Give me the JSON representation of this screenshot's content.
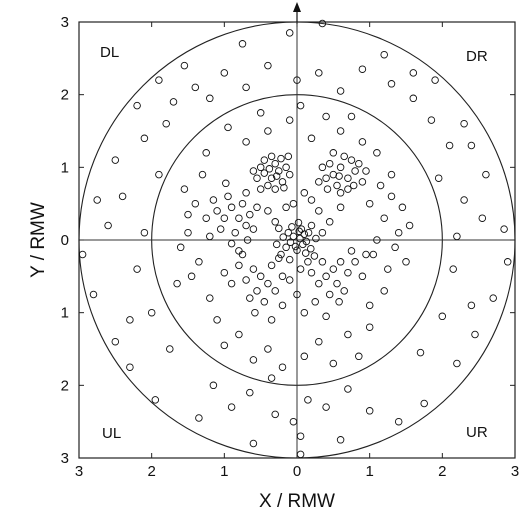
{
  "chart_data": {
    "type": "scatter",
    "title": "",
    "xlabel": "X / RMW",
    "ylabel": "Y / RMW",
    "xlim": [
      -3,
      3
    ],
    "ylim": [
      -3,
      3
    ],
    "x_ticks": [
      -3,
      -2,
      -1,
      0,
      1,
      2,
      3
    ],
    "y_ticks": [
      -3,
      -2,
      -1,
      0,
      1,
      2,
      3
    ],
    "x_tick_labels": [
      "3",
      "2",
      "1",
      "0",
      "1",
      "2",
      "3"
    ],
    "y_tick_labels": [
      "3",
      "2",
      "1",
      "0",
      "1",
      "2",
      "3"
    ],
    "reference_circle_radii": [
      2,
      3
    ],
    "crosshair": true,
    "north_arrow": true,
    "grid": false,
    "marker": "open-circle",
    "quadrant_labels": {
      "top_left": "DL",
      "top_right": "DR",
      "bottom_left": "UL",
      "bottom_right": "UR"
    },
    "point_distribution_note_values": {
      "dense_core_center": [
        0.0,
        0.0
      ],
      "dense_clusters": [
        [
          -0.3,
          0.9
        ],
        [
          0.6,
          0.9
        ],
        [
          -0.8,
          0.3
        ],
        [
          0.5,
          -0.4
        ],
        [
          -0.5,
          -0.5
        ]
      ]
    },
    "series": [
      {
        "points": [
          [
            0.04,
            0.02
          ],
          [
            -0.05,
            0.05
          ],
          [
            0.08,
            -0.06
          ],
          [
            -0.02,
            -0.09
          ],
          [
            0.1,
            0.08
          ],
          [
            -0.09,
            -0.03
          ],
          [
            0.03,
            0.12
          ],
          [
            -0.12,
            0.1
          ],
          [
            0.13,
            -0.02
          ],
          [
            0.0,
            -0.14
          ],
          [
            0.06,
            0.15
          ],
          [
            -0.15,
            -0.1
          ],
          [
            0.16,
            0.1
          ],
          [
            -0.07,
            0.18
          ],
          [
            0.19,
            -0.12
          ],
          [
            0.12,
            -0.18
          ],
          [
            -0.19,
            0.04
          ],
          [
            0.2,
            0.2
          ],
          [
            -0.22,
            -0.2
          ],
          [
            0.02,
            0.24
          ],
          [
            -0.25,
            0.16
          ],
          [
            0.26,
            0.02
          ],
          [
            -0.1,
            -0.27
          ],
          [
            0.24,
            -0.22
          ],
          [
            -0.28,
            -0.06
          ],
          [
            -0.35,
            0.85
          ],
          [
            -0.25,
            0.95
          ],
          [
            -0.45,
            0.92
          ],
          [
            -0.3,
            1.05
          ],
          [
            -0.2,
            0.8
          ],
          [
            -0.4,
            0.75
          ],
          [
            -0.15,
            1.0
          ],
          [
            -0.5,
            1.0
          ],
          [
            -0.35,
            1.15
          ],
          [
            -0.22,
            1.12
          ],
          [
            -0.55,
            0.85
          ],
          [
            -0.1,
            0.9
          ],
          [
            -0.3,
            0.7
          ],
          [
            -0.45,
            1.1
          ],
          [
            -0.6,
            0.95
          ],
          [
            -0.28,
            0.88
          ],
          [
            -0.38,
            0.98
          ],
          [
            -0.18,
            0.72
          ],
          [
            -0.5,
            0.7
          ],
          [
            -0.12,
            1.15
          ],
          [
            0.5,
            0.9
          ],
          [
            0.6,
            1.0
          ],
          [
            0.7,
            0.85
          ],
          [
            0.45,
            1.05
          ],
          [
            0.8,
            0.95
          ],
          [
            0.55,
            0.75
          ],
          [
            0.65,
            1.15
          ],
          [
            0.4,
            0.85
          ],
          [
            0.75,
            1.1
          ],
          [
            0.9,
            0.8
          ],
          [
            0.35,
            1.0
          ],
          [
            0.85,
            1.05
          ],
          [
            0.6,
            0.65
          ],
          [
            0.5,
            1.2
          ],
          [
            0.7,
            0.7
          ],
          [
            0.95,
            0.95
          ],
          [
            0.3,
            0.8
          ],
          [
            0.58,
            0.88
          ],
          [
            0.78,
            0.75
          ],
          [
            0.42,
            0.7
          ],
          [
            -0.8,
            0.3
          ],
          [
            -0.9,
            0.45
          ],
          [
            -0.7,
            0.2
          ],
          [
            -1.0,
            0.3
          ],
          [
            -0.85,
            0.1
          ],
          [
            -0.75,
            0.5
          ],
          [
            -0.95,
            0.6
          ],
          [
            -0.65,
            0.35
          ],
          [
            -1.1,
            0.4
          ],
          [
            -0.6,
            0.15
          ],
          [
            -0.9,
            -0.05
          ],
          [
            -1.05,
            0.15
          ],
          [
            -0.7,
            0.65
          ],
          [
            -1.15,
            0.55
          ],
          [
            -0.8,
            -0.15
          ],
          [
            -0.55,
            0.45
          ],
          [
            -1.2,
            0.05
          ],
          [
            -0.98,
            0.78
          ],
          [
            -0.68,
            0.0
          ],
          [
            -1.25,
            0.3
          ],
          [
            0.5,
            -0.4
          ],
          [
            0.6,
            -0.3
          ],
          [
            0.4,
            -0.5
          ],
          [
            0.7,
            -0.45
          ],
          [
            0.55,
            -0.6
          ],
          [
            0.35,
            -0.3
          ],
          [
            0.8,
            -0.3
          ],
          [
            0.65,
            -0.7
          ],
          [
            0.45,
            -0.75
          ],
          [
            0.9,
            -0.5
          ],
          [
            0.3,
            -0.6
          ],
          [
            0.75,
            -0.15
          ],
          [
            0.95,
            -0.2
          ],
          [
            0.2,
            -0.45
          ],
          [
            0.58,
            -0.85
          ],
          [
            -0.5,
            -0.5
          ],
          [
            -0.6,
            -0.4
          ],
          [
            -0.4,
            -0.6
          ],
          [
            -0.7,
            -0.55
          ],
          [
            -0.55,
            -0.7
          ],
          [
            -0.35,
            -0.35
          ],
          [
            -0.8,
            -0.35
          ],
          [
            -0.65,
            -0.8
          ],
          [
            -0.45,
            -0.85
          ],
          [
            -0.9,
            -0.6
          ],
          [
            -0.3,
            -0.7
          ],
          [
            -0.75,
            -0.2
          ],
          [
            -0.2,
            -0.5
          ],
          [
            -1.0,
            -0.45
          ],
          [
            -0.58,
            -1.0
          ],
          [
            0.3,
            0.4
          ],
          [
            -0.4,
            0.4
          ],
          [
            0.2,
            0.55
          ],
          [
            -0.15,
            0.45
          ],
          [
            0.45,
            0.25
          ],
          [
            0.1,
            0.65
          ],
          [
            -0.3,
            0.25
          ],
          [
            0.6,
            0.45
          ],
          [
            0.35,
            0.1
          ],
          [
            -0.05,
            0.5
          ],
          [
            0.15,
            -0.3
          ],
          [
            -0.25,
            -0.25
          ],
          [
            0.05,
            -0.4
          ],
          [
            -0.1,
            -0.55
          ],
          [
            0.25,
            -0.85
          ],
          [
            -0.2,
            -0.9
          ],
          [
            0.1,
            -1.0
          ],
          [
            0.0,
            -0.75
          ],
          [
            -0.35,
            -1.1
          ],
          [
            0.4,
            -1.05
          ],
          [
            1.0,
            0.5
          ],
          [
            1.2,
            0.3
          ],
          [
            1.1,
            0.0
          ],
          [
            1.3,
            0.6
          ],
          [
            1.05,
            -0.2
          ],
          [
            1.25,
            -0.4
          ],
          [
            1.4,
            0.1
          ],
          [
            1.15,
            0.75
          ],
          [
            1.35,
            -0.1
          ],
          [
            1.45,
            0.45
          ],
          [
            1.2,
            -0.7
          ],
          [
            1.0,
            -0.9
          ],
          [
            1.5,
            -0.3
          ],
          [
            1.3,
            0.9
          ],
          [
            1.55,
            0.2
          ],
          [
            -1.3,
            0.9
          ],
          [
            -1.4,
            0.5
          ],
          [
            -1.5,
            0.1
          ],
          [
            -1.35,
            -0.3
          ],
          [
            -1.2,
            -0.8
          ],
          [
            -1.45,
            -0.5
          ],
          [
            -1.55,
            0.7
          ],
          [
            -1.6,
            -0.1
          ],
          [
            -1.25,
            1.2
          ],
          [
            -1.1,
            -1.1
          ],
          [
            -1.5,
            0.35
          ],
          [
            -1.65,
            -0.6
          ],
          [
            0.2,
            1.4
          ],
          [
            -0.4,
            1.5
          ],
          [
            0.6,
            1.5
          ],
          [
            -0.1,
            1.65
          ],
          [
            0.9,
            1.35
          ],
          [
            -0.7,
            1.35
          ],
          [
            0.4,
            1.7
          ],
          [
            -0.95,
            1.55
          ],
          [
            1.1,
            1.2
          ],
          [
            0.05,
            1.85
          ],
          [
            -0.5,
            1.75
          ],
          [
            0.75,
            1.7
          ],
          [
            0.3,
            -1.4
          ],
          [
            -0.4,
            -1.5
          ],
          [
            0.7,
            -1.3
          ],
          [
            -0.8,
            -1.3
          ],
          [
            0.1,
            -1.6
          ],
          [
            -0.2,
            -1.75
          ],
          [
            0.5,
            -1.7
          ],
          [
            -0.6,
            -1.65
          ],
          [
            1.0,
            -1.2
          ],
          [
            -1.0,
            -1.45
          ],
          [
            0.85,
            -1.6
          ],
          [
            -0.35,
            -1.9
          ],
          [
            -1.9,
            2.2
          ],
          [
            -1.55,
            2.4
          ],
          [
            -0.75,
            2.7
          ],
          [
            -0.1,
            2.85
          ],
          [
            0.35,
            2.98
          ],
          [
            1.2,
            2.55
          ],
          [
            1.6,
            2.3
          ],
          [
            1.9,
            2.2
          ],
          [
            2.3,
            1.6
          ],
          [
            2.4,
            1.3
          ],
          [
            2.6,
            0.9
          ],
          [
            2.85,
            0.15
          ],
          [
            2.9,
            -0.3
          ],
          [
            2.7,
            -0.8
          ],
          [
            2.45,
            -1.3
          ],
          [
            2.2,
            -1.7
          ],
          [
            1.75,
            -2.25
          ],
          [
            1.4,
            -2.5
          ],
          [
            0.6,
            -2.75
          ],
          [
            0.05,
            -2.95
          ],
          [
            -0.6,
            -2.8
          ],
          [
            -1.35,
            -2.45
          ],
          [
            -1.95,
            -2.2
          ],
          [
            -2.3,
            -1.75
          ],
          [
            -2.5,
            -1.4
          ],
          [
            -2.8,
            -0.75
          ],
          [
            -2.95,
            -0.2
          ],
          [
            -2.75,
            0.55
          ],
          [
            -2.5,
            1.1
          ],
          [
            -2.2,
            1.85
          ],
          [
            -2.1,
            1.4
          ],
          [
            -1.8,
            1.6
          ],
          [
            -2.4,
            0.6
          ],
          [
            -2.2,
            -0.4
          ],
          [
            -2.0,
            -1.0
          ],
          [
            -1.75,
            -1.5
          ],
          [
            -2.3,
            -1.1
          ],
          [
            -2.6,
            0.2
          ],
          [
            -1.9,
            0.9
          ],
          [
            -2.1,
            0.1
          ],
          [
            -1.7,
            1.9
          ],
          [
            -1.4,
            2.1
          ],
          [
            2.1,
            1.3
          ],
          [
            1.85,
            1.65
          ],
          [
            2.3,
            0.55
          ],
          [
            2.15,
            -0.4
          ],
          [
            2.0,
            -1.05
          ],
          [
            1.7,
            -1.55
          ],
          [
            2.4,
            -0.9
          ],
          [
            2.55,
            0.3
          ],
          [
            1.95,
            0.85
          ],
          [
            2.2,
            0.05
          ],
          [
            1.6,
            1.95
          ],
          [
            1.3,
            2.15
          ],
          [
            -1.0,
            2.3
          ],
          [
            -0.4,
            2.4
          ],
          [
            0.3,
            2.3
          ],
          [
            0.9,
            2.35
          ],
          [
            -0.7,
            2.1
          ],
          [
            0.6,
            2.05
          ],
          [
            -1.2,
            1.95
          ],
          [
            0.0,
            2.2
          ],
          [
            -0.9,
            -2.3
          ],
          [
            -0.3,
            -2.4
          ],
          [
            0.4,
            -2.3
          ],
          [
            1.0,
            -2.35
          ],
          [
            -0.65,
            -2.1
          ],
          [
            0.7,
            -2.05
          ],
          [
            -1.15,
            -2.0
          ],
          [
            0.15,
            -2.2
          ],
          [
            0.05,
            -2.7
          ],
          [
            -0.05,
            -2.5
          ]
        ]
      }
    ]
  }
}
